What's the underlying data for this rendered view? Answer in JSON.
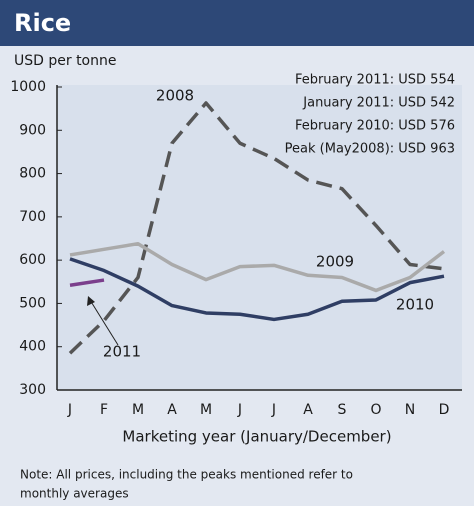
{
  "chart_data": {
    "type": "line",
    "title": "Rice",
    "y_label": "USD per tonne",
    "x_label": "Marketing year (January/December)",
    "annotations": [
      "February 2011: USD 554",
      "January 2011: USD 542",
      "February 2010: USD 576",
      "Peak (May2008): USD 963"
    ],
    "note": [
      "Note: All prices, including the peaks mentioned refer to",
      "monthly averages"
    ],
    "categories": [
      "J",
      "F",
      "M",
      "A",
      "M",
      "J",
      "J",
      "A",
      "S",
      "O",
      "N",
      "D"
    ],
    "ylim": [
      300,
      1000
    ],
    "yticks": [
      300,
      400,
      500,
      600,
      700,
      800,
      900,
      1000
    ],
    "series": [
      {
        "name": "2008",
        "color": "#555555",
        "dashed": true,
        "values": [
          385,
          460,
          560,
          870,
          963,
          870,
          835,
          785,
          765,
          680,
          590,
          580
        ]
      },
      {
        "name": "2009",
        "color": "#aaaaaa",
        "values": [
          612,
          625,
          638,
          590,
          555,
          585,
          588,
          565,
          560,
          530,
          560,
          620
        ]
      },
      {
        "name": "2010",
        "color": "#2f3e64",
        "values": [
          603,
          576,
          540,
          495,
          478,
          475,
          463,
          475,
          505,
          508,
          548,
          563
        ]
      },
      {
        "name": "2011",
        "color": "#7b3f8c",
        "values": [
          542,
          554,
          null,
          null,
          null,
          null,
          null,
          null,
          null,
          null,
          null,
          null
        ]
      }
    ]
  }
}
